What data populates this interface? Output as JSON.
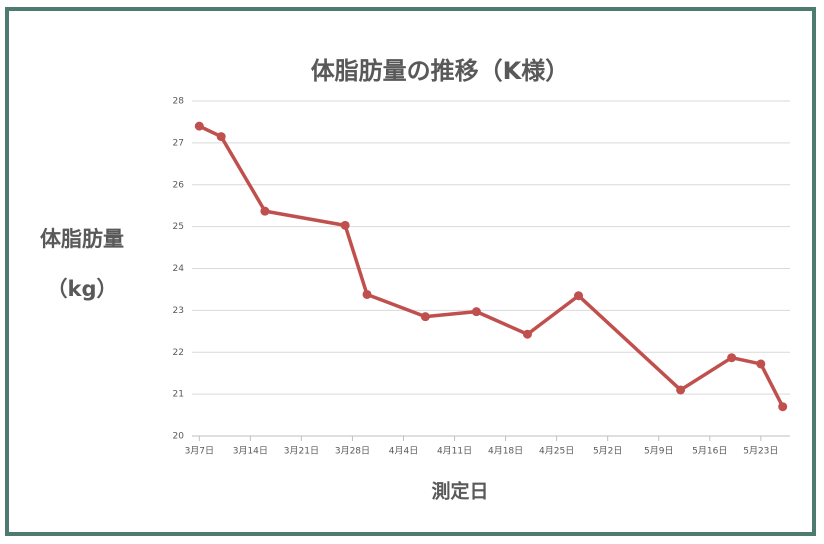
{
  "chart_data": {
    "type": "line",
    "title": "体脂肪量の推移（K様）",
    "ylabel_lines": [
      "体脂肪量",
      "（kg）"
    ],
    "xlabel": "測定日",
    "x": [
      "3月7日",
      "3月10日",
      "3月16日",
      "3月27日",
      "3月30日",
      "4月7日",
      "4月14日",
      "4月21日",
      "4月28日",
      "5月12日",
      "5月19日",
      "5月23日",
      "5月26日"
    ],
    "series": [
      {
        "color": "#c0504d",
        "values": [
          27.4,
          27.15,
          25.37,
          25.03,
          23.38,
          22.85,
          22.97,
          22.43,
          23.35,
          21.1,
          21.87,
          21.72,
          20.7
        ]
      }
    ],
    "xlim": [
      "3月6日",
      "5月27日"
    ],
    "xticks": [
      "3月7日",
      "3月14日",
      "3月21日",
      "3月28日",
      "4月4日",
      "4月11日",
      "4月18日",
      "4月25日",
      "5月2日",
      "5月9日",
      "5月16日",
      "5月23日"
    ],
    "ylim": [
      20,
      28
    ],
    "yticks": [
      20,
      21,
      22,
      23,
      24,
      25,
      26,
      27,
      28
    ],
    "grid": true
  }
}
